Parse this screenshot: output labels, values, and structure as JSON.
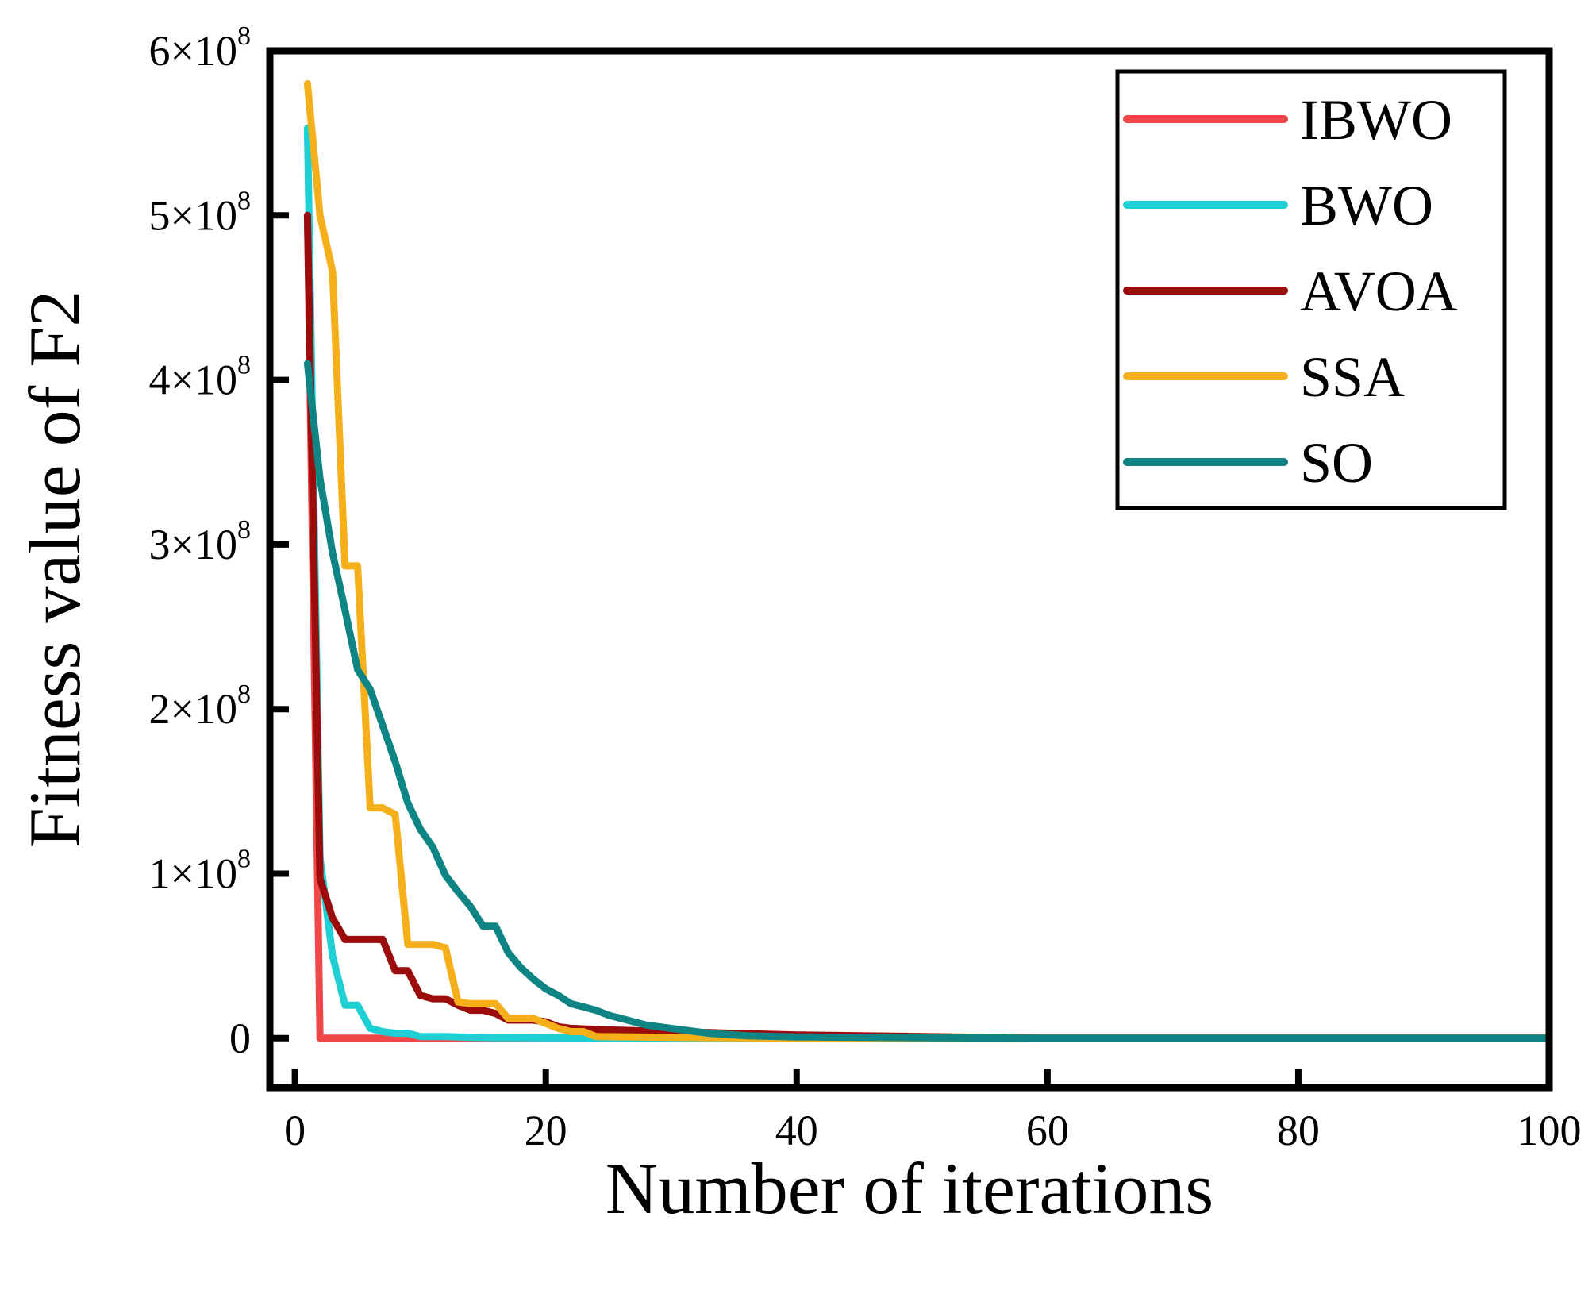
{
  "chart_data": {
    "type": "line",
    "title": "",
    "xlabel": "Number of iterations",
    "ylabel": "Fitness value of F2",
    "xlim": [
      -2,
      100
    ],
    "ylim": [
      -30000000,
      600000000
    ],
    "xticks": [
      0,
      20,
      40,
      60,
      80,
      100
    ],
    "xtick_labels": [
      "0",
      "20",
      "40",
      "60",
      "80",
      "100"
    ],
    "yticks": [
      0,
      100000000,
      200000000,
      300000000,
      400000000,
      500000000,
      600000000
    ],
    "ytick_labels": [
      {
        "base": "0",
        "exp": ""
      },
      {
        "base": "1×10",
        "exp": "8"
      },
      {
        "base": "2×10",
        "exp": "8"
      },
      {
        "base": "3×10",
        "exp": "8"
      },
      {
        "base": "4×10",
        "exp": "8"
      },
      {
        "base": "5×10",
        "exp": "8"
      },
      {
        "base": "6×10",
        "exp": "8"
      }
    ],
    "grid": false,
    "legend_position": "top-right",
    "series": [
      {
        "name": "IBWO",
        "color": "#F04848",
        "points": [
          [
            1,
            500000000
          ],
          [
            2,
            0
          ],
          [
            100,
            0
          ]
        ]
      },
      {
        "name": "BWO",
        "color": "#1ECFD3",
        "points": [
          [
            1,
            553000000
          ],
          [
            2,
            110000000
          ],
          [
            3,
            50000000
          ],
          [
            4,
            20000000
          ],
          [
            5,
            20000000
          ],
          [
            6,
            6000000
          ],
          [
            7,
            4000000
          ],
          [
            8,
            3000000
          ],
          [
            9,
            3000000
          ],
          [
            10,
            1000000
          ],
          [
            12,
            1000000
          ],
          [
            14,
            500000
          ],
          [
            16,
            300000
          ],
          [
            20,
            200000
          ],
          [
            30,
            0
          ],
          [
            100,
            0
          ]
        ]
      },
      {
        "name": "AVOA",
        "color": "#9B0C0C",
        "points": [
          [
            1,
            500000000
          ],
          [
            2,
            97000000
          ],
          [
            3,
            73000000
          ],
          [
            4,
            60000000
          ],
          [
            5,
            60000000
          ],
          [
            6,
            60000000
          ],
          [
            7,
            60000000
          ],
          [
            8,
            41000000
          ],
          [
            9,
            41000000
          ],
          [
            10,
            26000000
          ],
          [
            11,
            24000000
          ],
          [
            12,
            24000000
          ],
          [
            13,
            20000000
          ],
          [
            14,
            17000000
          ],
          [
            15,
            17000000
          ],
          [
            16,
            15000000
          ],
          [
            17,
            11000000
          ],
          [
            18,
            11000000
          ],
          [
            19,
            11000000
          ],
          [
            20,
            10000000
          ],
          [
            21,
            7000000
          ],
          [
            22,
            6000000
          ],
          [
            25,
            5000000
          ],
          [
            30,
            4000000
          ],
          [
            35,
            3000000
          ],
          [
            40,
            2000000
          ],
          [
            50,
            1000000
          ],
          [
            60,
            0
          ],
          [
            100,
            0
          ]
        ]
      },
      {
        "name": "SSA",
        "color": "#F4AF1B",
        "points": [
          [
            1,
            580000000
          ],
          [
            2,
            500000000
          ],
          [
            3,
            466000000
          ],
          [
            4,
            287000000
          ],
          [
            5,
            287000000
          ],
          [
            6,
            140000000
          ],
          [
            7,
            140000000
          ],
          [
            8,
            136000000
          ],
          [
            9,
            57000000
          ],
          [
            10,
            57000000
          ],
          [
            11,
            57000000
          ],
          [
            12,
            55000000
          ],
          [
            13,
            22000000
          ],
          [
            14,
            21000000
          ],
          [
            15,
            21000000
          ],
          [
            16,
            21000000
          ],
          [
            17,
            12000000
          ],
          [
            18,
            12000000
          ],
          [
            19,
            12000000
          ],
          [
            20,
            9000000
          ],
          [
            21,
            6000000
          ],
          [
            22,
            4000000
          ],
          [
            23,
            4000000
          ],
          [
            24,
            1000000
          ],
          [
            30,
            500000
          ],
          [
            40,
            0
          ],
          [
            100,
            0
          ]
        ]
      },
      {
        "name": "SO",
        "color": "#0E8584",
        "points": [
          [
            1,
            410000000
          ],
          [
            2,
            340000000
          ],
          [
            3,
            295000000
          ],
          [
            4,
            260000000
          ],
          [
            5,
            224000000
          ],
          [
            6,
            212000000
          ],
          [
            7,
            190000000
          ],
          [
            8,
            168000000
          ],
          [
            9,
            143000000
          ],
          [
            10,
            127000000
          ],
          [
            11,
            116000000
          ],
          [
            12,
            99000000
          ],
          [
            13,
            89000000
          ],
          [
            14,
            80000000
          ],
          [
            15,
            68000000
          ],
          [
            16,
            68000000
          ],
          [
            17,
            52000000
          ],
          [
            18,
            43000000
          ],
          [
            19,
            36000000
          ],
          [
            20,
            30000000
          ],
          [
            21,
            26000000
          ],
          [
            22,
            21000000
          ],
          [
            23,
            19000000
          ],
          [
            24,
            17000000
          ],
          [
            25,
            14000000
          ],
          [
            26,
            12000000
          ],
          [
            28,
            8000000
          ],
          [
            30,
            6000000
          ],
          [
            33,
            3000000
          ],
          [
            36,
            1500000
          ],
          [
            40,
            800000
          ],
          [
            50,
            300000
          ],
          [
            60,
            0
          ],
          [
            100,
            0
          ]
        ]
      }
    ]
  }
}
